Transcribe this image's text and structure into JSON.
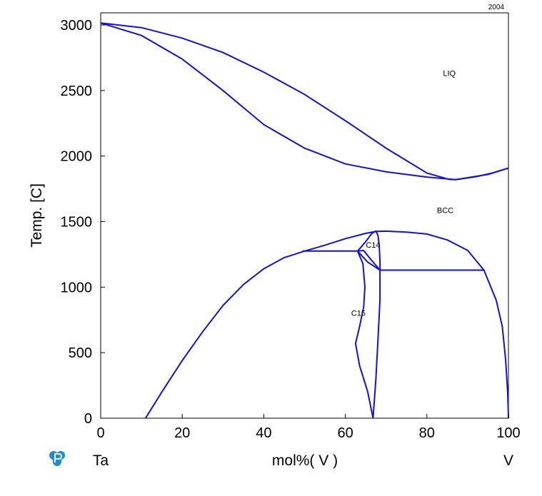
{
  "chart_data": {
    "type": "line",
    "corner_label": "2004",
    "ylabel": "Temp.  [C]",
    "xlabel": "mol%(  V  )",
    "left_element": "Ta",
    "right_element": "V",
    "xlim": [
      0,
      100
    ],
    "ylim": [
      0,
      3100
    ],
    "x_ticks": [
      0,
      20,
      40,
      60,
      80,
      100
    ],
    "y_ticks": [
      0,
      500,
      1000,
      1500,
      2000,
      2500,
      3000
    ],
    "grid": false,
    "line_color": "#1010e6",
    "logo_icon": "thermo-calc-logo-icon",
    "region_labels": [
      {
        "text": "LIQ",
        "x": 85.5,
        "y": 2610
      },
      {
        "text": "BCC",
        "x": 84.5,
        "y": 1565
      },
      {
        "text": "C14",
        "x": 66.8,
        "y": 1300
      },
      {
        "text": "C15",
        "x": 63.2,
        "y": 780
      }
    ],
    "series": [
      {
        "points": [
          [
            0,
            3015
          ],
          [
            10,
            2980
          ],
          [
            20,
            2900
          ],
          [
            30,
            2790
          ],
          [
            40,
            2640
          ],
          [
            50,
            2470
          ],
          [
            60,
            2270
          ],
          [
            70,
            2060
          ],
          [
            80,
            1870
          ],
          [
            85.5,
            1822
          ],
          [
            87,
            1820
          ]
        ]
      },
      {
        "points": [
          [
            0,
            3015
          ],
          [
            10,
            2920
          ],
          [
            20,
            2740
          ],
          [
            30,
            2500
          ],
          [
            40,
            2240
          ],
          [
            50,
            2060
          ],
          [
            60,
            1940
          ],
          [
            70,
            1880
          ],
          [
            80,
            1840
          ],
          [
            87,
            1820
          ]
        ]
      },
      {
        "points": [
          [
            87,
            1820
          ],
          [
            90,
            1835
          ],
          [
            95,
            1860
          ],
          [
            100,
            1908
          ]
        ]
      },
      {
        "points": [
          [
            87,
            1820
          ],
          [
            92,
            1842
          ],
          [
            96,
            1870
          ],
          [
            100,
            1908
          ]
        ]
      },
      {
        "points": [
          [
            11,
            0
          ],
          [
            15,
            200
          ],
          [
            20,
            440
          ],
          [
            25,
            660
          ],
          [
            30,
            860
          ],
          [
            35,
            1020
          ],
          [
            40,
            1140
          ],
          [
            45,
            1225
          ],
          [
            50,
            1275
          ],
          [
            55,
            1320
          ],
          [
            60,
            1370
          ],
          [
            65,
            1410
          ],
          [
            67.5,
            1425
          ],
          [
            70,
            1427
          ],
          [
            75,
            1420
          ],
          [
            80,
            1405
          ],
          [
            85,
            1360
          ],
          [
            90,
            1280
          ],
          [
            94,
            1130
          ],
          [
            97,
            900
          ],
          [
            98.5,
            700
          ],
          [
            99.3,
            450
          ],
          [
            99.8,
            200
          ],
          [
            100,
            0
          ]
        ]
      },
      {
        "points": [
          [
            49.5,
            1275
          ],
          [
            63,
            1275
          ]
        ]
      },
      {
        "points": [
          [
            63,
            1275
          ],
          [
            64.3,
            1180
          ],
          [
            64.8,
            1000
          ],
          [
            64.5,
            850
          ],
          [
            63.5,
            700
          ],
          [
            62.5,
            570
          ],
          [
            63.5,
            400
          ],
          [
            65.5,
            200
          ],
          [
            66.8,
            0
          ]
        ]
      },
      {
        "points": [
          [
            63,
            1275
          ],
          [
            65.5,
            1190
          ],
          [
            68.5,
            1130
          ]
        ]
      },
      {
        "points": [
          [
            63,
            1275
          ],
          [
            64.5,
            1279
          ],
          [
            66,
            1220
          ],
          [
            68.5,
            1130
          ]
        ]
      },
      {
        "points": [
          [
            66.8,
            0
          ],
          [
            67.5,
            300
          ],
          [
            68,
            600
          ],
          [
            68.5,
            900
          ],
          [
            68.5,
            1130
          ]
        ]
      },
      {
        "points": [
          [
            68.5,
            1130
          ],
          [
            94,
            1130
          ]
        ]
      },
      {
        "points": [
          [
            63,
            1275
          ],
          [
            64,
            1310
          ],
          [
            65.3,
            1360
          ],
          [
            66.5,
            1410
          ],
          [
            67.5,
            1427
          ],
          [
            68,
            1395
          ],
          [
            68.3,
            1320
          ],
          [
            68.5,
            1200
          ],
          [
            68.5,
            1130
          ]
        ]
      }
    ]
  }
}
